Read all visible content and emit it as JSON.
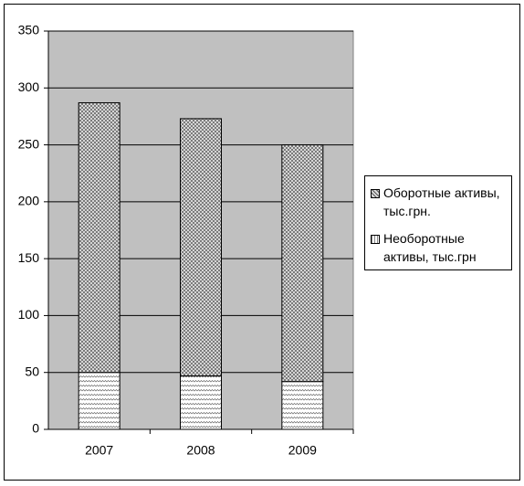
{
  "chart_data": {
    "type": "stacked_bar",
    "categories": [
      "2007",
      "2008",
      "2009"
    ],
    "series": [
      {
        "name": "Оборотные активы, тыс.грн.",
        "color": "#a0a0a0",
        "values": [
          237,
          226,
          208
        ]
      },
      {
        "name": "Необоротные активы, тыс.грн",
        "color": "#ffffff",
        "values": [
          50,
          47,
          42
        ]
      }
    ],
    "ylim": [
      0,
      350
    ],
    "yticks": [
      0,
      50,
      100,
      150,
      200,
      250,
      300,
      350
    ],
    "grid": true,
    "legend": "right"
  }
}
